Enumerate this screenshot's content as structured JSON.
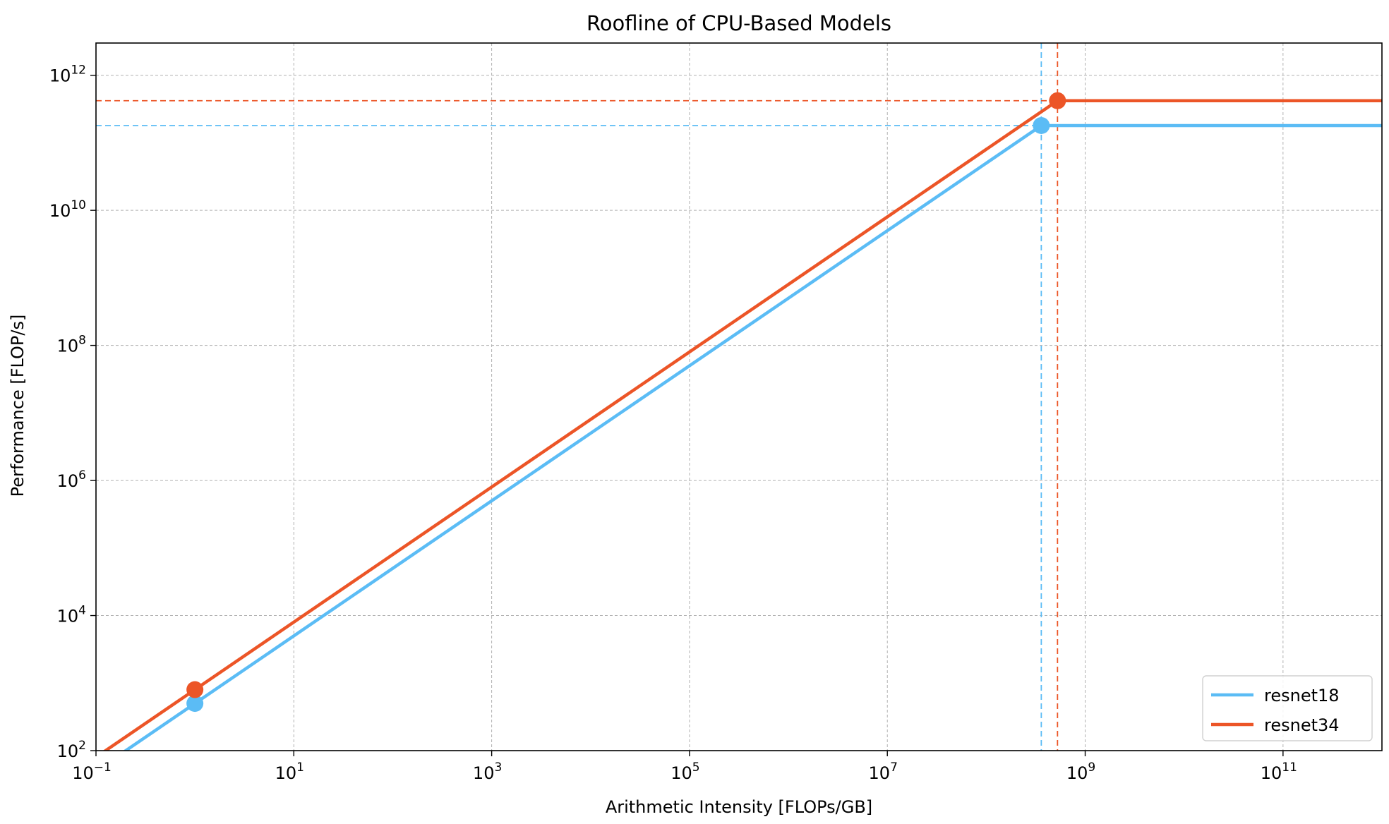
{
  "chart_data": {
    "type": "line",
    "title": "Roofline of CPU-Based Models",
    "xlabel": "Arithmetic Intensity [FLOPs/GB]",
    "ylabel": "Performance [FLOP/s]",
    "xscale": "log",
    "yscale": "log",
    "xlim": [
      0.1,
      1000000000000
    ],
    "ylim": [
      100,
      3000000000000
    ],
    "x_ticks": [
      {
        "base": "10",
        "exp": "−1",
        "value": 0.1
      },
      {
        "base": "10",
        "exp": "1",
        "value": 10
      },
      {
        "base": "10",
        "exp": "3",
        "value": 1000
      },
      {
        "base": "10",
        "exp": "5",
        "value": 100000
      },
      {
        "base": "10",
        "exp": "7",
        "value": 10000000
      },
      {
        "base": "10",
        "exp": "9",
        "value": 1000000000
      },
      {
        "base": "10",
        "exp": "11",
        "value": 100000000000
      }
    ],
    "y_ticks": [
      {
        "base": "10",
        "exp": "2",
        "value": 100
      },
      {
        "base": "10",
        "exp": "4",
        "value": 10000
      },
      {
        "base": "10",
        "exp": "6",
        "value": 1000000
      },
      {
        "base": "10",
        "exp": "8",
        "value": 100000000
      },
      {
        "base": "10",
        "exp": "10",
        "value": 10000000000
      },
      {
        "base": "10",
        "exp": "12",
        "value": 1000000000000
      }
    ],
    "grid": true,
    "legend_position": "lower-right",
    "series": [
      {
        "name": "resnet18",
        "color": "#5bbcf5",
        "bandwidth": 500,
        "peak": 180000000000,
        "ridge_x": 360000000,
        "marker_points": [
          {
            "x": 1,
            "y": 500
          },
          {
            "x": 360000000,
            "y": 180000000000
          }
        ]
      },
      {
        "name": "resnet34",
        "color": "#ec5527",
        "bandwidth": 800,
        "peak": 420000000000,
        "ridge_x": 525000000,
        "marker_points": [
          {
            "x": 1,
            "y": 800
          },
          {
            "x": 525000000,
            "y": 420000000000
          }
        ]
      }
    ]
  }
}
